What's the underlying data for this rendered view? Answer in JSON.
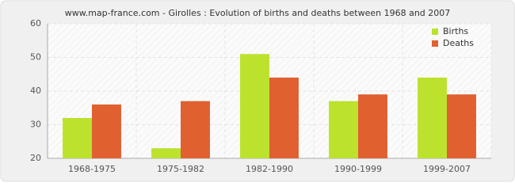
{
  "chart_data": {
    "type": "bar",
    "title": "www.map-france.com - Girolles : Evolution of births and deaths between 1968 and 2007",
    "categories": [
      "1968-1975",
      "1975-1982",
      "1982-1990",
      "1990-1999",
      "1999-2007"
    ],
    "series": [
      {
        "name": "Births",
        "color": "#bce22e",
        "values": [
          32,
          23,
          51,
          37,
          44
        ]
      },
      {
        "name": "Deaths",
        "color": "#e06030",
        "values": [
          36,
          37,
          44,
          39,
          39
        ]
      }
    ],
    "ylim": [
      20,
      60
    ],
    "yticks": [
      20,
      30,
      40,
      50,
      60
    ],
    "grid": true,
    "legend": "upper right"
  }
}
